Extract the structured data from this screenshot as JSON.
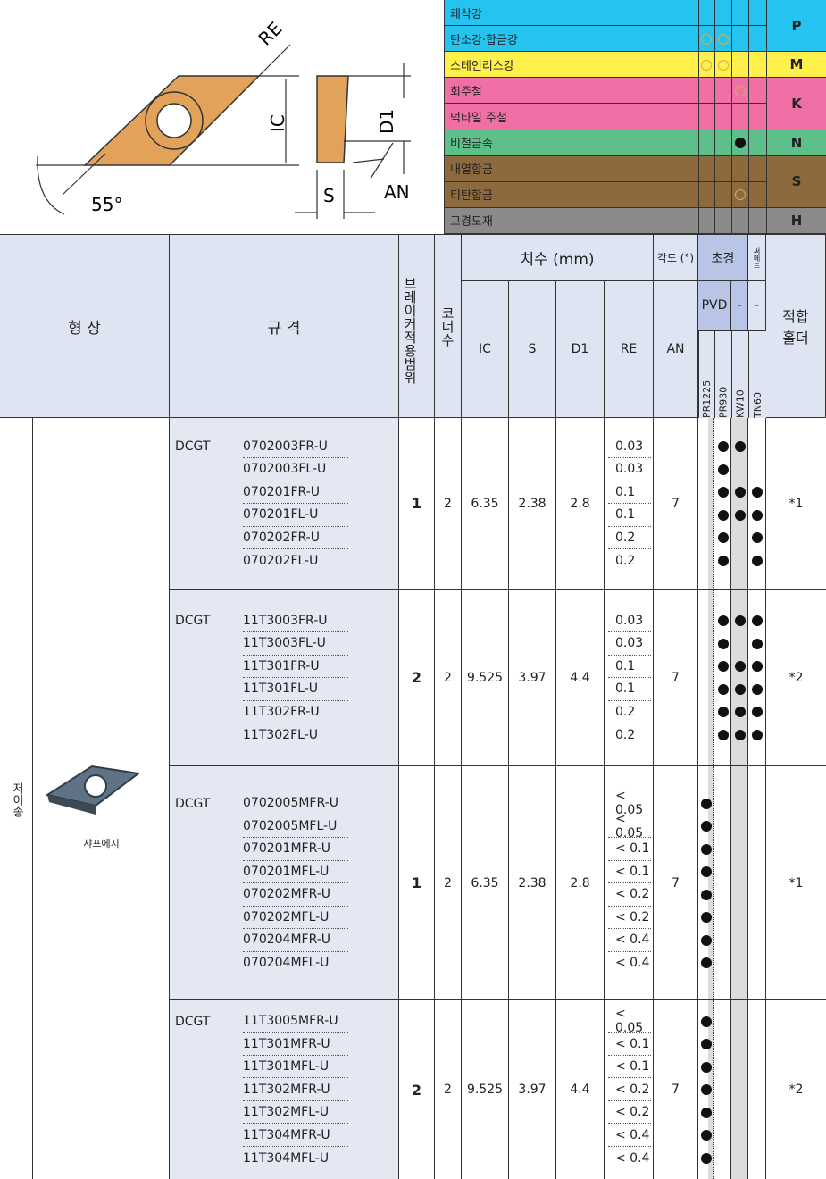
{
  "diagram": {
    "re": "RE",
    "ic": "IC",
    "d1": "D1",
    "s": "S",
    "an": "AN",
    "angle": "55°"
  },
  "materials": {
    "groups": [
      {
        "letter": "P",
        "color": "#25c3ef",
        "materials": [
          {
            "name": "쾌삭강",
            "grades": [
              false,
              false,
              false,
              false
            ]
          },
          {
            "name": "탄소강·합금강",
            "grades": [
              true,
              true,
              false,
              false
            ]
          }
        ]
      },
      {
        "letter": "M",
        "color": "#fff04c",
        "materials": [
          {
            "name": "스테인리스강",
            "grades": [
              true,
              true,
              false,
              false
            ]
          }
        ]
      },
      {
        "letter": "K",
        "color": "#f06fa6",
        "materials": [
          {
            "name": "회주철",
            "grades": [
              false,
              false,
              true,
              false
            ]
          },
          {
            "name": "덕타일 주철",
            "grades": [
              false,
              false,
              false,
              false
            ]
          }
        ]
      },
      {
        "letter": "N",
        "color": "#5dbf8a",
        "materials": [
          {
            "name": "비철금속",
            "grades": [
              false,
              false,
              true,
              false
            ],
            "solid": true
          }
        ]
      },
      {
        "letter": "S",
        "color": "#8d6a3d",
        "materials": [
          {
            "name": "내열합금",
            "grades": [
              false,
              false,
              false,
              false
            ]
          },
          {
            "name": "티탄합금",
            "grades": [
              false,
              false,
              true,
              false
            ]
          }
        ]
      },
      {
        "letter": "H",
        "color": "#8a8a8a",
        "materials": [
          {
            "name": "고경도재",
            "grades": [
              false,
              false,
              false,
              false
            ]
          }
        ]
      }
    ]
  },
  "header": {
    "shape": "형 상",
    "spec": "규 격",
    "breaker": "브레이커적용범위",
    "corners": "코너수",
    "dims": "치수 (mm)",
    "dim_cols": [
      "IC",
      "S",
      "D1",
      "RE"
    ],
    "angle": "각도 (°)",
    "angle_col": "AN",
    "carbide": "초경",
    "cermet": "써메트",
    "pvd": "PVD",
    "dash_kw": "-",
    "dash_tn": "-",
    "grades": [
      "PR1225",
      "PR930",
      "KW10",
      "TN60"
    ],
    "holder": "적합 홀더"
  },
  "body": {
    "side_label": "저이송",
    "shape_caption": "샤프에지",
    "groups": [
      {
        "series": "DCGT",
        "breaker": 1,
        "corners": 2,
        "ic": 6.35,
        "s": 2.38,
        "d1": 2.8,
        "an": 7,
        "holder": "*1",
        "items": [
          {
            "code": "0702003FR-U",
            "re": "0.03",
            "grades": [
              false,
              true,
              true,
              false
            ]
          },
          {
            "code": "0702003FL-U",
            "re": "0.03",
            "grades": [
              false,
              true,
              false,
              false
            ]
          },
          {
            "code": "070201FR-U",
            "re": "0.1",
            "grades": [
              false,
              true,
              true,
              true
            ]
          },
          {
            "code": "070201FL-U",
            "re": "0.1",
            "grades": [
              false,
              true,
              true,
              true
            ]
          },
          {
            "code": "070202FR-U",
            "re": "0.2",
            "grades": [
              false,
              true,
              false,
              true
            ]
          },
          {
            "code": "070202FL-U",
            "re": "0.2",
            "grades": [
              false,
              true,
              false,
              true
            ]
          }
        ]
      },
      {
        "series": "DCGT",
        "breaker": 2,
        "corners": 2,
        "ic": 9.525,
        "s": 3.97,
        "d1": 4.4,
        "an": 7,
        "holder": "*2",
        "items": [
          {
            "code": "11T3003FR-U",
            "re": "0.03",
            "grades": [
              false,
              true,
              true,
              true
            ]
          },
          {
            "code": "11T3003FL-U",
            "re": "0.03",
            "grades": [
              false,
              true,
              false,
              true
            ]
          },
          {
            "code": "11T301FR-U",
            "re": "0.1",
            "grades": [
              false,
              true,
              true,
              true
            ]
          },
          {
            "code": "11T301FL-U",
            "re": "0.1",
            "grades": [
              false,
              true,
              true,
              true
            ]
          },
          {
            "code": "11T302FR-U",
            "re": "0.2",
            "grades": [
              false,
              true,
              true,
              true
            ]
          },
          {
            "code": "11T302FL-U",
            "re": "0.2",
            "grades": [
              false,
              true,
              true,
              true
            ]
          }
        ]
      },
      {
        "series": "DCGT",
        "breaker": 1,
        "corners": 2,
        "ic": 6.35,
        "s": 2.38,
        "d1": 2.8,
        "an": 7,
        "holder": "*1",
        "items": [
          {
            "code": "0702005MFR-U",
            "re": "< 0.05",
            "grades": [
              true,
              false,
              false,
              false
            ]
          },
          {
            "code": "0702005MFL-U",
            "re": "< 0.05",
            "grades": [
              true,
              false,
              false,
              false
            ]
          },
          {
            "code": "070201MFR-U",
            "re": "< 0.1",
            "grades": [
              true,
              false,
              false,
              false
            ]
          },
          {
            "code": "070201MFL-U",
            "re": "< 0.1",
            "grades": [
              true,
              false,
              false,
              false
            ]
          },
          {
            "code": "070202MFR-U",
            "re": "< 0.2",
            "grades": [
              true,
              false,
              false,
              false
            ]
          },
          {
            "code": "070202MFL-U",
            "re": "< 0.2",
            "grades": [
              true,
              false,
              false,
              false
            ]
          },
          {
            "code": "070204MFR-U",
            "re": "< 0.4",
            "grades": [
              true,
              false,
              false,
              false
            ]
          },
          {
            "code": "070204MFL-U",
            "re": "< 0.4",
            "grades": [
              true,
              false,
              false,
              false
            ]
          }
        ]
      },
      {
        "series": "DCGT",
        "breaker": 2,
        "corners": 2,
        "ic": 9.525,
        "s": 3.97,
        "d1": 4.4,
        "an": 7,
        "holder": "*2",
        "items": [
          {
            "code": "11T3005MFR-U",
            "re": "< 0.05",
            "grades": [
              true,
              false,
              false,
              false
            ]
          },
          {
            "code": "11T301MFR-U",
            "re": "< 0.1",
            "grades": [
              true,
              false,
              false,
              false
            ]
          },
          {
            "code": "11T301MFL-U",
            "re": "< 0.1",
            "grades": [
              true,
              false,
              false,
              false
            ]
          },
          {
            "code": "11T302MFR-U",
            "re": "< 0.2",
            "grades": [
              true,
              false,
              false,
              false
            ]
          },
          {
            "code": "11T302MFL-U",
            "re": "< 0.2",
            "grades": [
              true,
              false,
              false,
              false
            ]
          },
          {
            "code": "11T304MFR-U",
            "re": "< 0.4",
            "grades": [
              true,
              false,
              false,
              false
            ]
          },
          {
            "code": "11T304MFL-U",
            "re": "< 0.4",
            "grades": [
              true,
              false,
              false,
              false
            ]
          }
        ]
      }
    ]
  }
}
